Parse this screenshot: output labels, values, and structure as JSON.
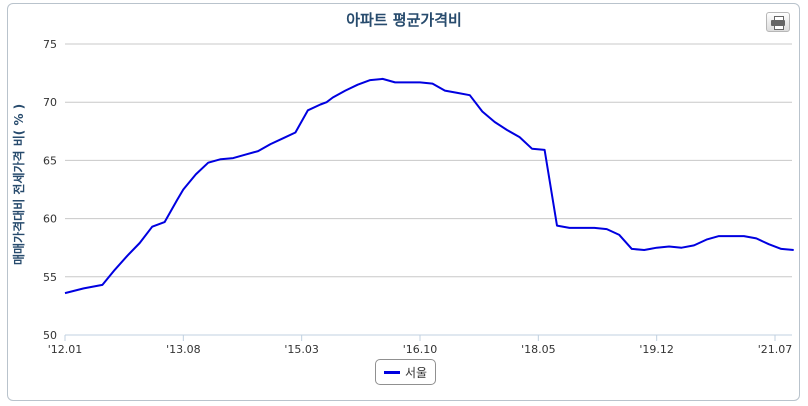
{
  "chart": {
    "title": "아파트 평균가격비",
    "ylabel": "매매가격대비 전세가격 비( % )",
    "print_icon": "printer-icon"
  },
  "chart_data": {
    "type": "line",
    "title": "아파트 평균가격비",
    "xlabel": "",
    "ylabel": "매매가격대비 전세가격 비( % )",
    "ylim": [
      50,
      75
    ],
    "yticks": [
      50,
      55,
      60,
      65,
      70,
      75
    ],
    "xticks": [
      "'12.01",
      "'13.08",
      "'15.03",
      "'16.10",
      "'18.05",
      "'19.12",
      "'21.07"
    ],
    "grid": true,
    "legend": "bottom-center",
    "series": [
      {
        "name": "서울",
        "color": "#0000e0",
        "x": [
          "2012-01",
          "2012-04",
          "2012-07",
          "2012-09",
          "2012-11",
          "2013-01",
          "2013-03",
          "2013-05",
          "2013-07",
          "2013-08",
          "2013-10",
          "2013-12",
          "2014-02",
          "2014-04",
          "2014-06",
          "2014-08",
          "2014-10",
          "2014-12",
          "2015-02",
          "2015-04",
          "2015-06",
          "2015-07",
          "2015-08",
          "2015-10",
          "2015-12",
          "2016-02",
          "2016-04",
          "2016-06",
          "2016-08",
          "2016-10",
          "2016-12",
          "2017-02",
          "2017-04",
          "2017-06",
          "2017-08",
          "2017-10",
          "2017-12",
          "2018-02",
          "2018-04",
          "2018-06",
          "2018-08",
          "2018-10",
          "2018-11",
          "2018-12",
          "2019-02",
          "2019-04",
          "2019-06",
          "2019-08",
          "2019-10",
          "2019-11",
          "2019-12",
          "2020-02",
          "2020-04",
          "2020-06",
          "2020-08",
          "2020-10",
          "2020-12",
          "2021-02",
          "2021-04",
          "2021-06",
          "2021-08",
          "2021-10"
        ],
        "y": [
          53.6,
          54.0,
          54.3,
          55.6,
          56.8,
          57.9,
          59.3,
          59.7,
          61.6,
          62.5,
          63.8,
          64.8,
          65.1,
          65.2,
          65.5,
          65.8,
          66.4,
          66.9,
          67.4,
          69.3,
          69.8,
          70.0,
          70.4,
          71.0,
          71.5,
          71.9,
          72.0,
          71.7,
          71.7,
          71.7,
          71.6,
          71.0,
          70.8,
          70.6,
          69.2,
          68.3,
          67.6,
          67.0,
          66.0,
          65.9,
          59.4,
          59.2,
          59.2,
          59.2,
          59.2,
          59.1,
          58.6,
          57.4,
          57.3,
          57.4,
          57.5,
          57.6,
          57.5,
          57.7,
          58.2,
          58.5,
          58.5,
          58.5,
          58.3,
          57.8,
          57.4,
          57.3
        ]
      }
    ]
  }
}
